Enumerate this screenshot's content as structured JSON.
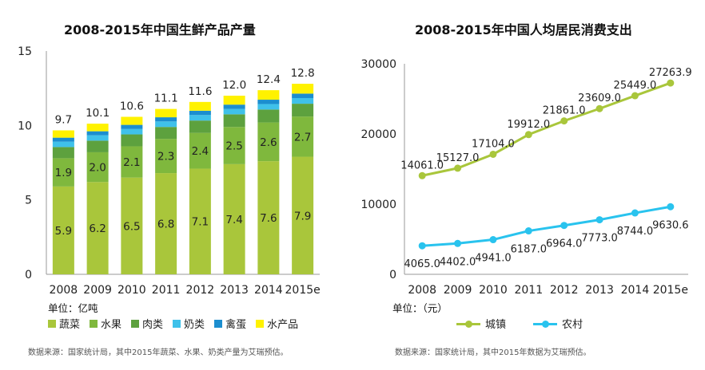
{
  "chart_data": [
    {
      "type": "bar",
      "stacked": true,
      "title": "2008-2015年中国生鲜产品产量",
      "unit_label": "单位：亿吨",
      "categories": [
        "2008",
        "2009",
        "2010",
        "2011",
        "2012",
        "2013",
        "2014",
        "2015e"
      ],
      "ylim": [
        0,
        15
      ],
      "yticks": [
        "0",
        "5",
        "10",
        "15"
      ],
      "series": [
        {
          "name": "蔬菜",
          "color": "#a9c63b",
          "values": [
            5.9,
            6.2,
            6.5,
            6.8,
            7.1,
            7.4,
            7.6,
            7.9
          ],
          "labels": [
            "5.9",
            "6.2",
            "6.5",
            "6.8",
            "7.1",
            "7.4",
            "7.6",
            "7.9"
          ]
        },
        {
          "name": "水果",
          "color": "#7fb83d",
          "values": [
            1.9,
            2.0,
            2.1,
            2.3,
            2.4,
            2.5,
            2.6,
            2.7
          ],
          "labels": [
            "1.9",
            "2.0",
            "2.1",
            "2.3",
            "2.4",
            "2.5",
            "2.6",
            "2.7"
          ]
        },
        {
          "name": "肉类",
          "color": "#5da13e",
          "values": [
            0.75,
            0.78,
            0.8,
            0.8,
            0.83,
            0.85,
            0.87,
            0.86
          ]
        },
        {
          "name": "奶类",
          "color": "#3fc1ea",
          "values": [
            0.36,
            0.36,
            0.36,
            0.37,
            0.37,
            0.36,
            0.37,
            0.38
          ]
        },
        {
          "name": "禽蛋",
          "color": "#1c8ecf",
          "values": [
            0.27,
            0.27,
            0.28,
            0.28,
            0.29,
            0.29,
            0.29,
            0.3
          ]
        },
        {
          "name": "水产品",
          "color": "#fff200",
          "values": [
            0.49,
            0.51,
            0.54,
            0.56,
            0.59,
            0.6,
            0.64,
            0.66
          ]
        }
      ],
      "totals": [
        "9.7",
        "10.1",
        "10.6",
        "11.1",
        "11.6",
        "12.0",
        "12.4",
        "12.8"
      ],
      "legend": [
        "蔬菜",
        "水果",
        "肉类",
        "奶类",
        "禽蛋",
        "水产品"
      ],
      "legend_position": "bottom",
      "source": "数据来源：国家统计局，其中2015年蔬菜、水果、奶类产量为艾瑞预估。"
    },
    {
      "type": "line",
      "title": "2008-2015年中国人均居民消费支出",
      "unit_label": "单位：（元）",
      "categories": [
        "2008",
        "2009",
        "2010",
        "2011",
        "2012",
        "2013",
        "2014",
        "2015e"
      ],
      "ylim": [
        0,
        30000
      ],
      "yticks": [
        "0",
        "10000",
        "20000",
        "30000"
      ],
      "series": [
        {
          "name": "城镇",
          "color": "#a9c63b",
          "values": [
            14061.0,
            15127.0,
            17104.0,
            19912.0,
            21861.0,
            23609.0,
            25449.0,
            27263.9
          ],
          "labels": [
            "14061.0",
            "15127.0",
            "17104.0",
            "19912.0",
            "21861.0",
            "23609.0",
            "25449.0",
            "27263.9"
          ]
        },
        {
          "name": "农村",
          "color": "#29c3ee",
          "values": [
            4065.0,
            4402.0,
            4941.0,
            6187.0,
            6964.0,
            7773.0,
            8744.0,
            9630.6
          ],
          "labels": [
            "4065.0",
            "4402.0",
            "4941.0",
            "6187.0",
            "6964.0",
            "7773.0",
            "8744.0",
            "9630.6"
          ]
        }
      ],
      "legend": [
        "城镇",
        "农村"
      ],
      "legend_position": "bottom",
      "source": "数据来源：国家统计局，其中2015年数据为艾瑞预估。"
    }
  ]
}
